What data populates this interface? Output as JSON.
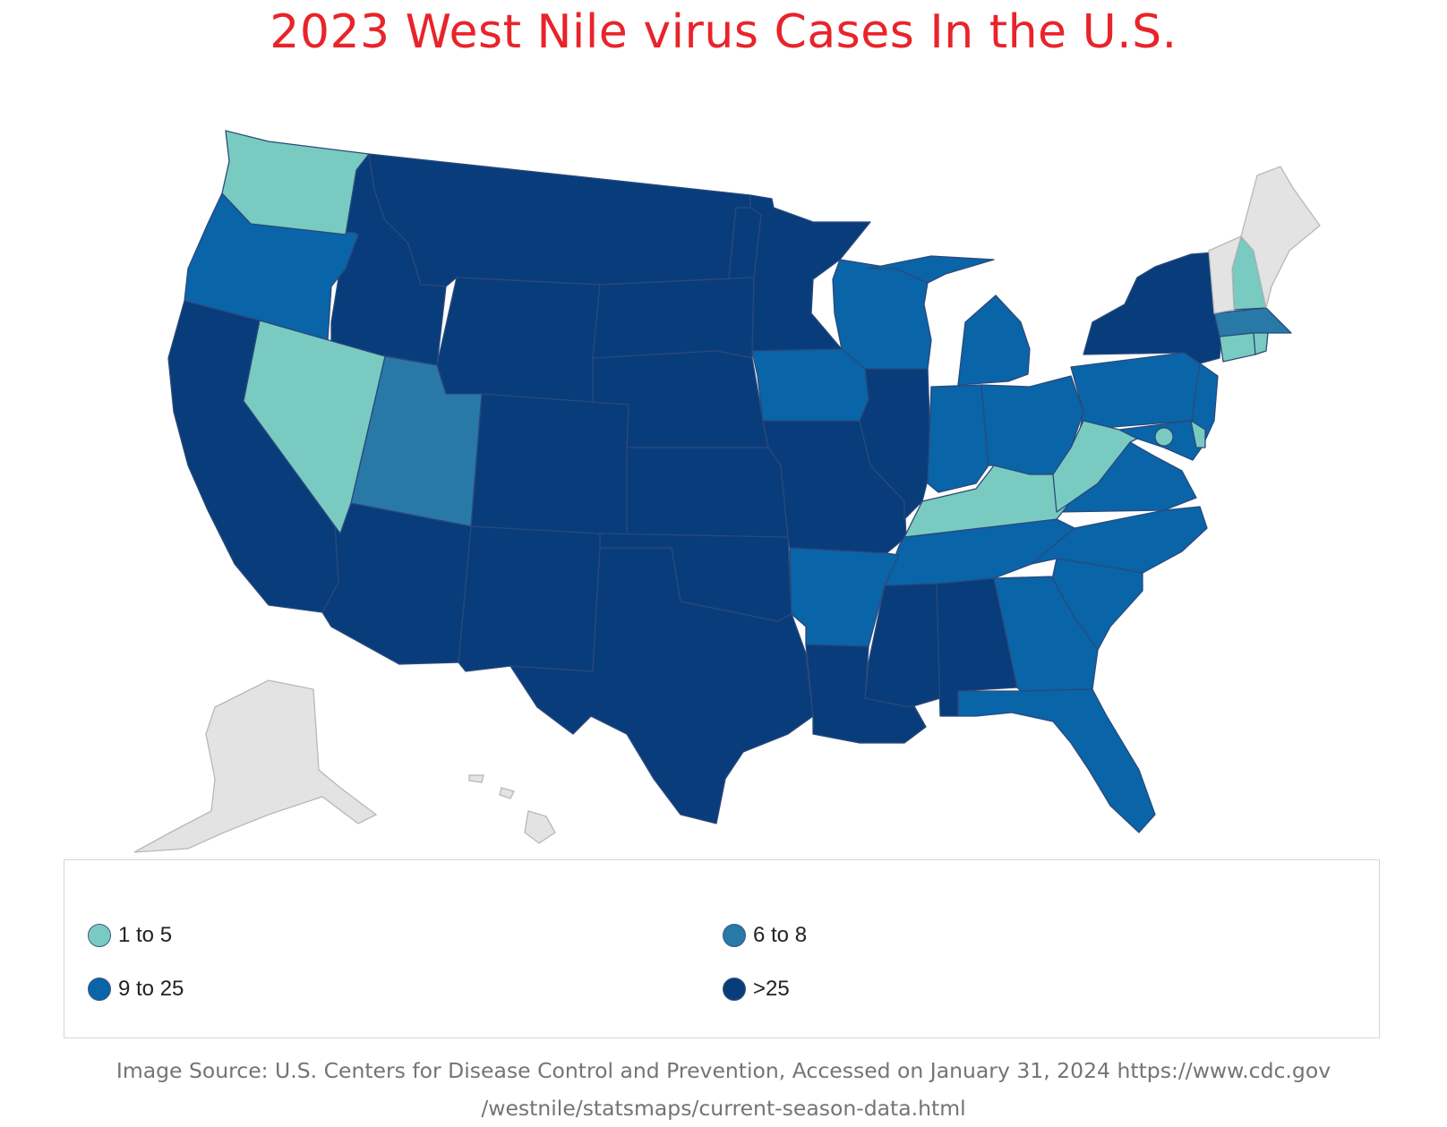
{
  "title": "2023 West Nile virus Cases In the U.S.",
  "colors": {
    "title": "#e8242a",
    "c1to5": "#79cbc1",
    "c6to8": "#2878a8",
    "c9to25": "#0a64a8",
    "cOver25": "#093c7a",
    "noData": "#e3e3e3"
  },
  "legend": {
    "items": [
      {
        "label": "1 to 5",
        "color": "#79cbc1"
      },
      {
        "label": "6 to 8",
        "color": "#2878a8"
      },
      {
        "label": "9 to 25",
        "color": "#0a64a8"
      },
      {
        "label": ">25",
        "color": "#093c7a"
      }
    ]
  },
  "source": {
    "line1": "Image Source: U.S. Centers for Disease Control and Prevention, Accessed on January 31, 2024 https://www.cdc.gov",
    "line2": "/westnile/statsmaps/current-season-data.html"
  },
  "map": {
    "bins": {
      "1 to 5": [
        "Washington",
        "Nevada",
        "New Hampshire",
        "Connecticut",
        "Rhode Island",
        "Delaware",
        "District of Columbia",
        "Kentucky",
        "West Virginia"
      ],
      "6 to 8": [
        "Utah",
        "Massachusetts"
      ],
      "9 to 25": [
        "Oregon",
        "Wisconsin",
        "Michigan",
        "Iowa",
        "Indiana",
        "Ohio",
        "Pennsylvania",
        "New Jersey",
        "Maryland",
        "Virginia",
        "North Carolina",
        "South Carolina",
        "Georgia",
        "Florida",
        "Tennessee",
        "Arkansas"
      ],
      ">25": [
        "California",
        "Idaho",
        "Montana",
        "Wyoming",
        "Colorado",
        "Arizona",
        "New Mexico",
        "Texas",
        "Oklahoma",
        "Kansas",
        "Nebraska",
        "South Dakota",
        "North Dakota",
        "Minnesota",
        "Missouri",
        "Illinois",
        "Louisiana",
        "Mississippi",
        "Alabama",
        "New York"
      ],
      "no data": [
        "Maine",
        "Vermont",
        "Alaska",
        "Hawaii"
      ]
    }
  }
}
